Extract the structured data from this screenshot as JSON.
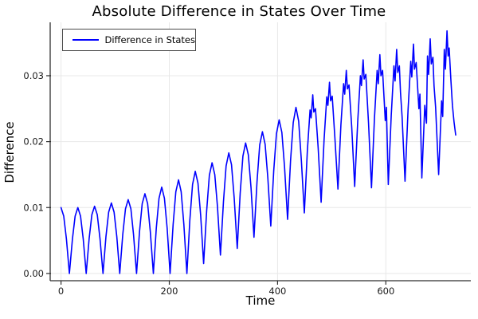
{
  "title": "Absolute Difference in States Over Time",
  "axes": {
    "x_label": "Time",
    "y_label": "Difference"
  },
  "legend": {
    "label": "Difference in States"
  },
  "colors": {
    "line": "#0000ff",
    "spine": "#2f2f2f",
    "grid": "#e8e8e8",
    "tick_text": "#1a1a1a",
    "background": "#ffffff"
  },
  "chart_data": {
    "type": "line",
    "title": "Absolute Difference in States Over Time",
    "xlabel": "Time",
    "ylabel": "Difference",
    "xlim": [
      -20,
      757
    ],
    "ylim": [
      -0.0011,
      0.0381
    ],
    "grid": true,
    "legend_position": "top-left",
    "xticks": [
      {
        "t": 0,
        "label": "0"
      },
      {
        "t": 200,
        "label": "200"
      },
      {
        "t": 400,
        "label": "400"
      },
      {
        "t": 600,
        "label": "600"
      }
    ],
    "yticks": [
      {
        "v": 0.0,
        "label": "0.00"
      },
      {
        "v": 0.01,
        "label": "0.01"
      },
      {
        "v": 0.02,
        "label": "0.02"
      },
      {
        "v": 0.03,
        "label": "0.03"
      }
    ],
    "series": [
      {
        "name": "Difference in States",
        "color": "#0000ff",
        "points": [
          [
            0,
            0.01
          ],
          [
            5,
            0.0087
          ],
          [
            10,
            0.0052
          ],
          [
            15.5,
            0.0
          ],
          [
            21,
            0.0052
          ],
          [
            26,
            0.0087
          ],
          [
            31,
            0.01
          ],
          [
            36,
            0.0087
          ],
          [
            41,
            0.0052
          ],
          [
            46.5,
            0.0
          ],
          [
            52,
            0.0053
          ],
          [
            57,
            0.0089
          ],
          [
            62,
            0.0102
          ],
          [
            67,
            0.0089
          ],
          [
            72,
            0.0053
          ],
          [
            77.5,
            0.0
          ],
          [
            83,
            0.0056
          ],
          [
            88,
            0.0093
          ],
          [
            93,
            0.0107
          ],
          [
            98,
            0.0093
          ],
          [
            103,
            0.0056
          ],
          [
            108.5,
            0.0
          ],
          [
            114,
            0.0059
          ],
          [
            119,
            0.0098
          ],
          [
            124,
            0.0112
          ],
          [
            129,
            0.0098
          ],
          [
            134,
            0.0059
          ],
          [
            139.5,
            0.0
          ],
          [
            145,
            0.0063
          ],
          [
            150,
            0.0106
          ],
          [
            155,
            0.0121
          ],
          [
            160,
            0.0106
          ],
          [
            165,
            0.0063
          ],
          [
            170.5,
            0.0
          ],
          [
            176,
            0.0069
          ],
          [
            181,
            0.0114
          ],
          [
            186,
            0.0131
          ],
          [
            191,
            0.0114
          ],
          [
            196,
            0.0069
          ],
          [
            201.5,
            0.0
          ],
          [
            207,
            0.0074
          ],
          [
            212,
            0.0124
          ],
          [
            217,
            0.0142
          ],
          [
            222,
            0.0124
          ],
          [
            227,
            0.0074
          ],
          [
            232.5,
            0.0
          ],
          [
            238,
            0.0081
          ],
          [
            243,
            0.0135
          ],
          [
            248,
            0.0155
          ],
          [
            253,
            0.0137
          ],
          [
            258,
            0.0088
          ],
          [
            263.5,
            0.0015
          ],
          [
            269,
            0.0095
          ],
          [
            274,
            0.0149
          ],
          [
            279,
            0.0168
          ],
          [
            284,
            0.015
          ],
          [
            289,
            0.0101
          ],
          [
            294.5,
            0.0028
          ],
          [
            300,
            0.0109
          ],
          [
            305,
            0.0163
          ],
          [
            310,
            0.0183
          ],
          [
            315,
            0.0165
          ],
          [
            320,
            0.0114
          ],
          [
            325.5,
            0.0038
          ],
          [
            331,
            0.0122
          ],
          [
            336,
            0.0178
          ],
          [
            341,
            0.0198
          ],
          [
            346,
            0.018
          ],
          [
            351,
            0.013
          ],
          [
            356.5,
            0.0055
          ],
          [
            362,
            0.0139
          ],
          [
            367,
            0.0195
          ],
          [
            372,
            0.0215
          ],
          [
            377,
            0.0196
          ],
          [
            382,
            0.0145
          ],
          [
            387.5,
            0.0072
          ],
          [
            393,
            0.0156
          ],
          [
            398,
            0.0212
          ],
          [
            403,
            0.0233
          ],
          [
            408,
            0.0214
          ],
          [
            413,
            0.0161
          ],
          [
            418.5,
            0.0082
          ],
          [
            424,
            0.0171
          ],
          [
            429,
            0.0229
          ],
          [
            434,
            0.0252
          ],
          [
            439,
            0.0231
          ],
          [
            444,
            0.0171
          ],
          [
            449.5,
            0.0092
          ],
          [
            455,
            0.0186
          ],
          [
            460,
            0.0248
          ],
          [
            462,
            0.0236
          ],
          [
            465,
            0.0271
          ],
          [
            467,
            0.0245
          ],
          [
            470,
            0.025
          ],
          [
            475,
            0.019
          ],
          [
            480.5,
            0.0108
          ],
          [
            486,
            0.0203
          ],
          [
            491,
            0.0268
          ],
          [
            493,
            0.0255
          ],
          [
            496,
            0.029
          ],
          [
            498,
            0.0262
          ],
          [
            501,
            0.0269
          ],
          [
            506,
            0.0205
          ],
          [
            511.5,
            0.0128
          ],
          [
            517,
            0.0225
          ],
          [
            522,
            0.0288
          ],
          [
            524,
            0.0272
          ],
          [
            527,
            0.0308
          ],
          [
            529,
            0.028
          ],
          [
            532,
            0.0286
          ],
          [
            537,
            0.0222
          ],
          [
            542.5,
            0.0132
          ],
          [
            548,
            0.023
          ],
          [
            553,
            0.03
          ],
          [
            555,
            0.0285
          ],
          [
            558,
            0.0324
          ],
          [
            560,
            0.0295
          ],
          [
            563,
            0.0302
          ],
          [
            568,
            0.0228
          ],
          [
            573.5,
            0.013
          ],
          [
            579,
            0.0235
          ],
          [
            584,
            0.0308
          ],
          [
            586,
            0.0288
          ],
          [
            589,
            0.0332
          ],
          [
            591,
            0.03
          ],
          [
            594,
            0.0308
          ],
          [
            599,
            0.0232
          ],
          [
            601,
            0.0252
          ],
          [
            604.5,
            0.0135
          ],
          [
            610,
            0.024
          ],
          [
            615,
            0.0315
          ],
          [
            617,
            0.0292
          ],
          [
            620,
            0.034
          ],
          [
            622,
            0.0305
          ],
          [
            625,
            0.0315
          ],
          [
            627,
            0.0275
          ],
          [
            630,
            0.0238
          ],
          [
            635.5,
            0.014
          ],
          [
            641,
            0.0248
          ],
          [
            646,
            0.0322
          ],
          [
            648,
            0.0298
          ],
          [
            651,
            0.0348
          ],
          [
            653,
            0.031
          ],
          [
            656,
            0.032
          ],
          [
            661,
            0.025
          ],
          [
            663,
            0.0272
          ],
          [
            666.5,
            0.0145
          ],
          [
            672,
            0.0255
          ],
          [
            675,
            0.0228
          ],
          [
            677,
            0.033
          ],
          [
            679,
            0.0302
          ],
          [
            682,
            0.0356
          ],
          [
            684,
            0.0318
          ],
          [
            687,
            0.0328
          ],
          [
            689,
            0.0285
          ],
          [
            692,
            0.0252
          ],
          [
            697.5,
            0.015
          ],
          [
            703,
            0.0262
          ],
          [
            705,
            0.0238
          ],
          [
            708,
            0.034
          ],
          [
            710,
            0.031
          ],
          [
            713,
            0.0368
          ],
          [
            715,
            0.033
          ],
          [
            717,
            0.0342
          ],
          [
            720,
            0.0295
          ],
          [
            723,
            0.0255
          ],
          [
            726,
            0.023
          ],
          [
            729,
            0.021
          ]
        ]
      }
    ]
  }
}
